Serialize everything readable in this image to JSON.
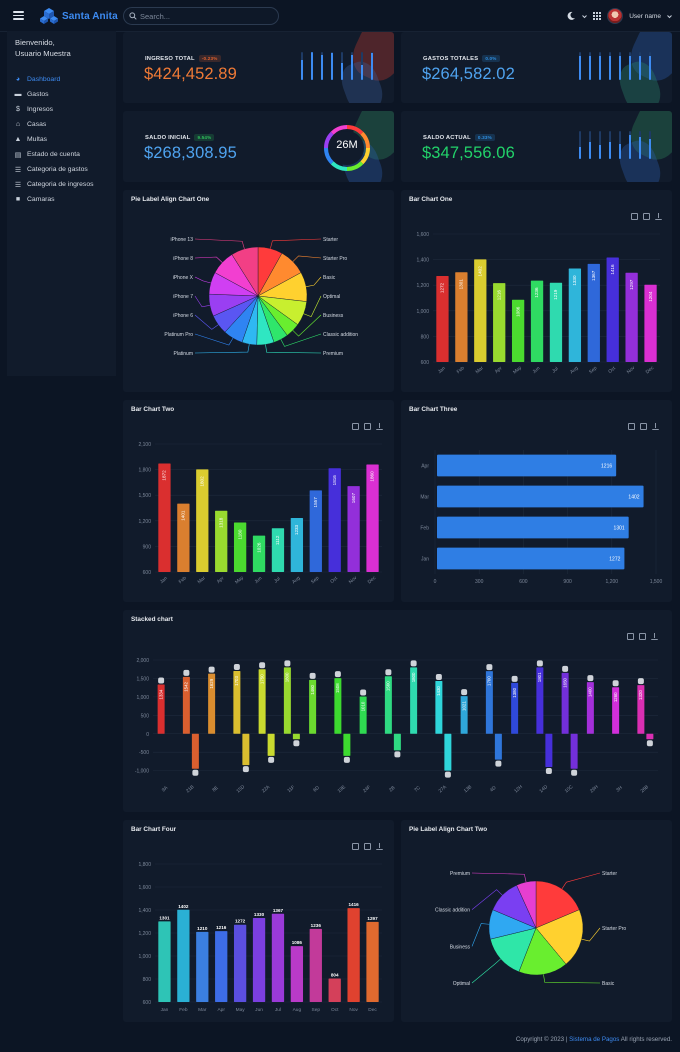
{
  "app": {
    "brand": "Santa Anita",
    "accent": "#3d8bf2",
    "bg": "#0c1524",
    "card_bg": "#111b2b"
  },
  "topbar": {
    "search_placeholder": "Search...",
    "user_name": "User name",
    "icons": [
      "menu-icon",
      "search-icon",
      "moon-icon",
      "apps-grid-icon",
      "chevron-down-icon"
    ]
  },
  "sidebar": {
    "welcome_line1": "Bienvenido,",
    "welcome_line2": "Usuario Muestra",
    "items": [
      {
        "label": "Dashboard",
        "icon": "dashboard-icon"
      },
      {
        "label": "Gastos",
        "icon": "card-icon"
      },
      {
        "label": "Ingresos",
        "icon": "dollar-icon"
      },
      {
        "label": "Casas",
        "icon": "home-icon"
      },
      {
        "label": "Multas",
        "icon": "warning-icon"
      },
      {
        "label": "Estado de cuenta",
        "icon": "document-icon"
      },
      {
        "label": "Categoria de gastos",
        "icon": "list-icon"
      },
      {
        "label": "Categoria de ingresos",
        "icon": "list-icon"
      },
      {
        "label": "Camaras",
        "icon": "camera-icon"
      }
    ]
  },
  "stats": [
    {
      "label": "INGRESO TOTAL",
      "badge": "-0.23%",
      "badge_color": "#e1612f",
      "value": "$424,452.89",
      "value_color": "#f07a36",
      "bars": [
        0.72,
        1.0,
        0.9,
        0.95,
        0.6,
        0.88,
        0.55,
        0.98
      ]
    },
    {
      "label": "GASTOS TOTALES",
      "badge": "0.0%",
      "badge_color": "#2f8fe0",
      "value": "$264,582.02",
      "value_color": "#4fa3ef",
      "bars": [
        0.85,
        0.85,
        0.85,
        0.85,
        0.85,
        0.85,
        0.85,
        0.85
      ]
    },
    {
      "label": "SALDO INICIAL",
      "badge": "9.54%",
      "badge_color": "#2fbf5b",
      "value": "$268,308.95",
      "value_color": "#4fa3ef",
      "ring": "26M"
    },
    {
      "label": "SALDO ACTUAL",
      "badge": "0.33%",
      "badge_color": "#2f8fe0",
      "value": "$347,556.06",
      "value_color": "#22d26a",
      "bars": [
        0.42,
        0.62,
        0.5,
        0.62,
        0.55,
        0.85,
        0.78,
        0.72
      ]
    }
  ],
  "footer": {
    "text_pre": "Copyright © 2023 | ",
    "link": "Sistema de Pagos",
    "text_post": " All rights reserved."
  },
  "chart_data": [
    {
      "id": "pie1",
      "type": "pie",
      "title": "Pie Label Align Chart One",
      "labels": [
        "Starter",
        "Starter Pro",
        "Basic",
        "Optimal",
        "Business",
        "Classic addition",
        "Premium",
        "Platinum",
        "Platinum Pro",
        "iPhone 6",
        "iPhone 7",
        "iPhone X",
        "iPhone 8",
        "iPhone 13"
      ],
      "values": [
        1,
        1.1,
        1.2,
        1,
        0.6,
        0.6,
        0.7,
        0.6,
        0.8,
        0.8,
        0.9,
        0.9,
        1,
        1.1
      ],
      "colors": [
        "#ff3b3b",
        "#ff8a2f",
        "#ffd12f",
        "#c8ef2f",
        "#69ee2f",
        "#2fe66b",
        "#2fe6c2",
        "#2fb8f2",
        "#2f84f2",
        "#5a56f2",
        "#9a3ff2",
        "#d03ff2",
        "#f23fd0",
        "#f23f85"
      ]
    },
    {
      "id": "bar1",
      "type": "bar",
      "title": "Bar Chart One",
      "categories": [
        "Jan",
        "Feb",
        "Mar",
        "Apr",
        "May",
        "Jun",
        "Jul",
        "Aug",
        "Sep",
        "Oct",
        "Nov",
        "Dec"
      ],
      "values": [
        1272,
        1301,
        1402,
        1216,
        1086,
        1236,
        1219,
        1330,
        1367,
        1416,
        1297,
        1204
      ],
      "ylim": [
        600,
        1600
      ],
      "yticks": [
        600,
        800,
        1000,
        1200,
        1400,
        1600
      ]
    },
    {
      "id": "bar2",
      "type": "bar",
      "title": "Bar Chart Two",
      "categories": [
        "Jan",
        "Feb",
        "Mar",
        "Apr",
        "May",
        "Jun",
        "Jul",
        "Aug",
        "Sep",
        "Oct",
        "Nov",
        "Dec"
      ],
      "values": [
        1872,
        1401,
        1802,
        1318,
        1180,
        1026,
        1112,
        1233,
        1557,
        1816,
        1607,
        1860
      ],
      "ylim": [
        600,
        2100
      ],
      "yticks": [
        600,
        900,
        1200,
        1500,
        1800,
        2100
      ]
    },
    {
      "id": "bar3",
      "type": "hbar",
      "title": "Bar Chart Three",
      "categories": [
        "Apr",
        "Mar",
        "Feb",
        "Jan"
      ],
      "values": [
        1216,
        1402,
        1301,
        1272
      ],
      "xlim": [
        0,
        1500
      ],
      "xticks": [
        0,
        300,
        600,
        900,
        1200,
        1500
      ]
    },
    {
      "id": "stack",
      "type": "bar",
      "title": "Stacked chart",
      "categories": [
        "9A",
        "21B",
        "8E",
        "15D",
        "22A",
        "11F",
        "6D",
        "19E",
        "24F",
        "2B",
        "7C",
        "27A",
        "13B",
        "4D",
        "12H",
        "14D",
        "10C",
        "29H",
        "3H",
        "26B"
      ],
      "series_pos": [
        1334,
        1542,
        1629,
        1703,
        1750,
        1800,
        1460,
        1508,
        1010,
        1560,
        1800,
        1430,
        1021,
        1700,
        1380,
        1801,
        1650,
        1400,
        1260,
        1320
      ],
      "series_neg": [
        0,
        -950,
        0,
        -850,
        -600,
        -150,
        0,
        -600,
        0,
        -450,
        0,
        -1000,
        0,
        -700,
        0,
        -900,
        -950,
        0,
        0,
        -150
      ],
      "ylim": [
        -1200,
        2000
      ],
      "yticks": [
        -1000,
        -500,
        0,
        500,
        1000,
        1500,
        2000
      ]
    },
    {
      "id": "bar4",
      "type": "bar",
      "title": "Bar Chart Four",
      "categories": [
        "Jan",
        "Feb",
        "Mar",
        "Apr",
        "May",
        "Jun",
        "Jul",
        "Aug",
        "Sep",
        "Oct",
        "Nov",
        "Dec"
      ],
      "values": [
        1301,
        1402,
        1210,
        1216,
        1272,
        1330,
        1367,
        1086,
        1236,
        804,
        1416,
        1297
      ],
      "ylim": [
        600,
        1800
      ],
      "yticks": [
        600,
        800,
        1000,
        1200,
        1400,
        1600,
        1800
      ],
      "colors": [
        "#2ec4b6",
        "#2ab0d4",
        "#3b7fe0",
        "#3d6de8",
        "#5b4fe0",
        "#7b3fe0",
        "#9a3ad8",
        "#b93ac8",
        "#c23a9a",
        "#d4405a",
        "#e0422f",
        "#e06a2f"
      ]
    },
    {
      "id": "pie2",
      "type": "pie",
      "title": "Pie Label Align Chart Two",
      "labels": [
        "Starter",
        "Starter Pro",
        "Basic",
        "Optimal",
        "Business",
        "Classic addition",
        "Premium"
      ],
      "values": [
        1.1,
        1.2,
        1.0,
        0.9,
        0.6,
        0.7,
        0.4
      ],
      "colors": [
        "#ff3b3b",
        "#ffd12f",
        "#69ee2f",
        "#2fe6a8",
        "#2fa8f2",
        "#7a3ff2",
        "#e63fd0"
      ]
    }
  ]
}
